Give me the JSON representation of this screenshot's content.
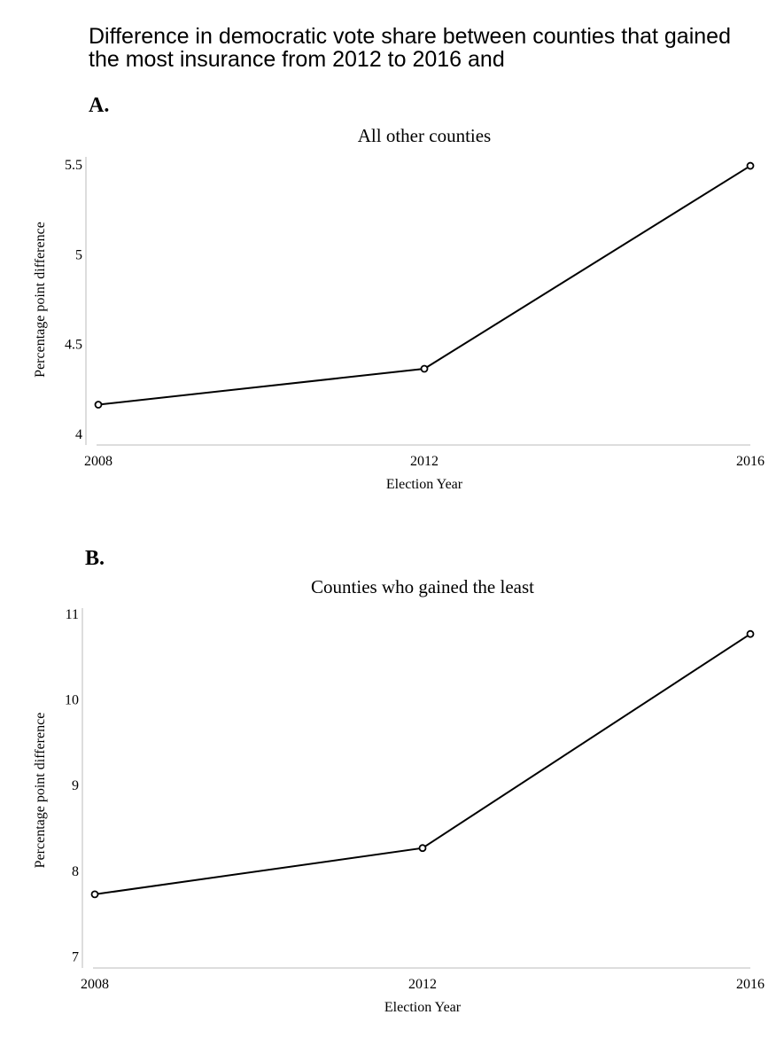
{
  "figure": {
    "title": "Difference in democratic vote share between counties that gained the most insurance from 2012 to 2016 and"
  },
  "chart_data": [
    {
      "type": "line",
      "panel_label": "A.",
      "title": "All other counties",
      "xlabel": "Election Year",
      "ylabel": "Percentage point difference",
      "x": [
        2008,
        2012,
        2016
      ],
      "x_tick_labels": [
        "2008",
        "2012",
        "2016"
      ],
      "y_ticks": [
        4,
        4.5,
        5,
        5.5
      ],
      "y_tick_labels": [
        "4",
        "4.5",
        "5",
        "5.5"
      ],
      "ylim": [
        3.98,
        5.51
      ],
      "series": [
        {
          "values": [
            4.16,
            4.36,
            5.49
          ]
        }
      ],
      "marker": "open-circle",
      "line_color": "#000000",
      "axis_color": "#bbbbbb"
    },
    {
      "type": "line",
      "panel_label": "B.",
      "title": "Counties who gained the least",
      "xlabel": "Election Year",
      "ylabel": "Percentage point difference",
      "x": [
        2008,
        2012,
        2016
      ],
      "x_tick_labels": [
        "2008",
        "2012",
        "2016"
      ],
      "y_ticks": [
        7,
        8,
        9,
        10,
        11
      ],
      "y_tick_labels": [
        "7",
        "8",
        "9",
        "10",
        "11"
      ],
      "ylim": [
        6.87,
        11.0
      ],
      "series": [
        {
          "values": [
            7.72,
            8.26,
            10.76
          ]
        }
      ],
      "marker": "open-circle",
      "line_color": "#000000",
      "axis_color": "#bbbbbb"
    }
  ]
}
